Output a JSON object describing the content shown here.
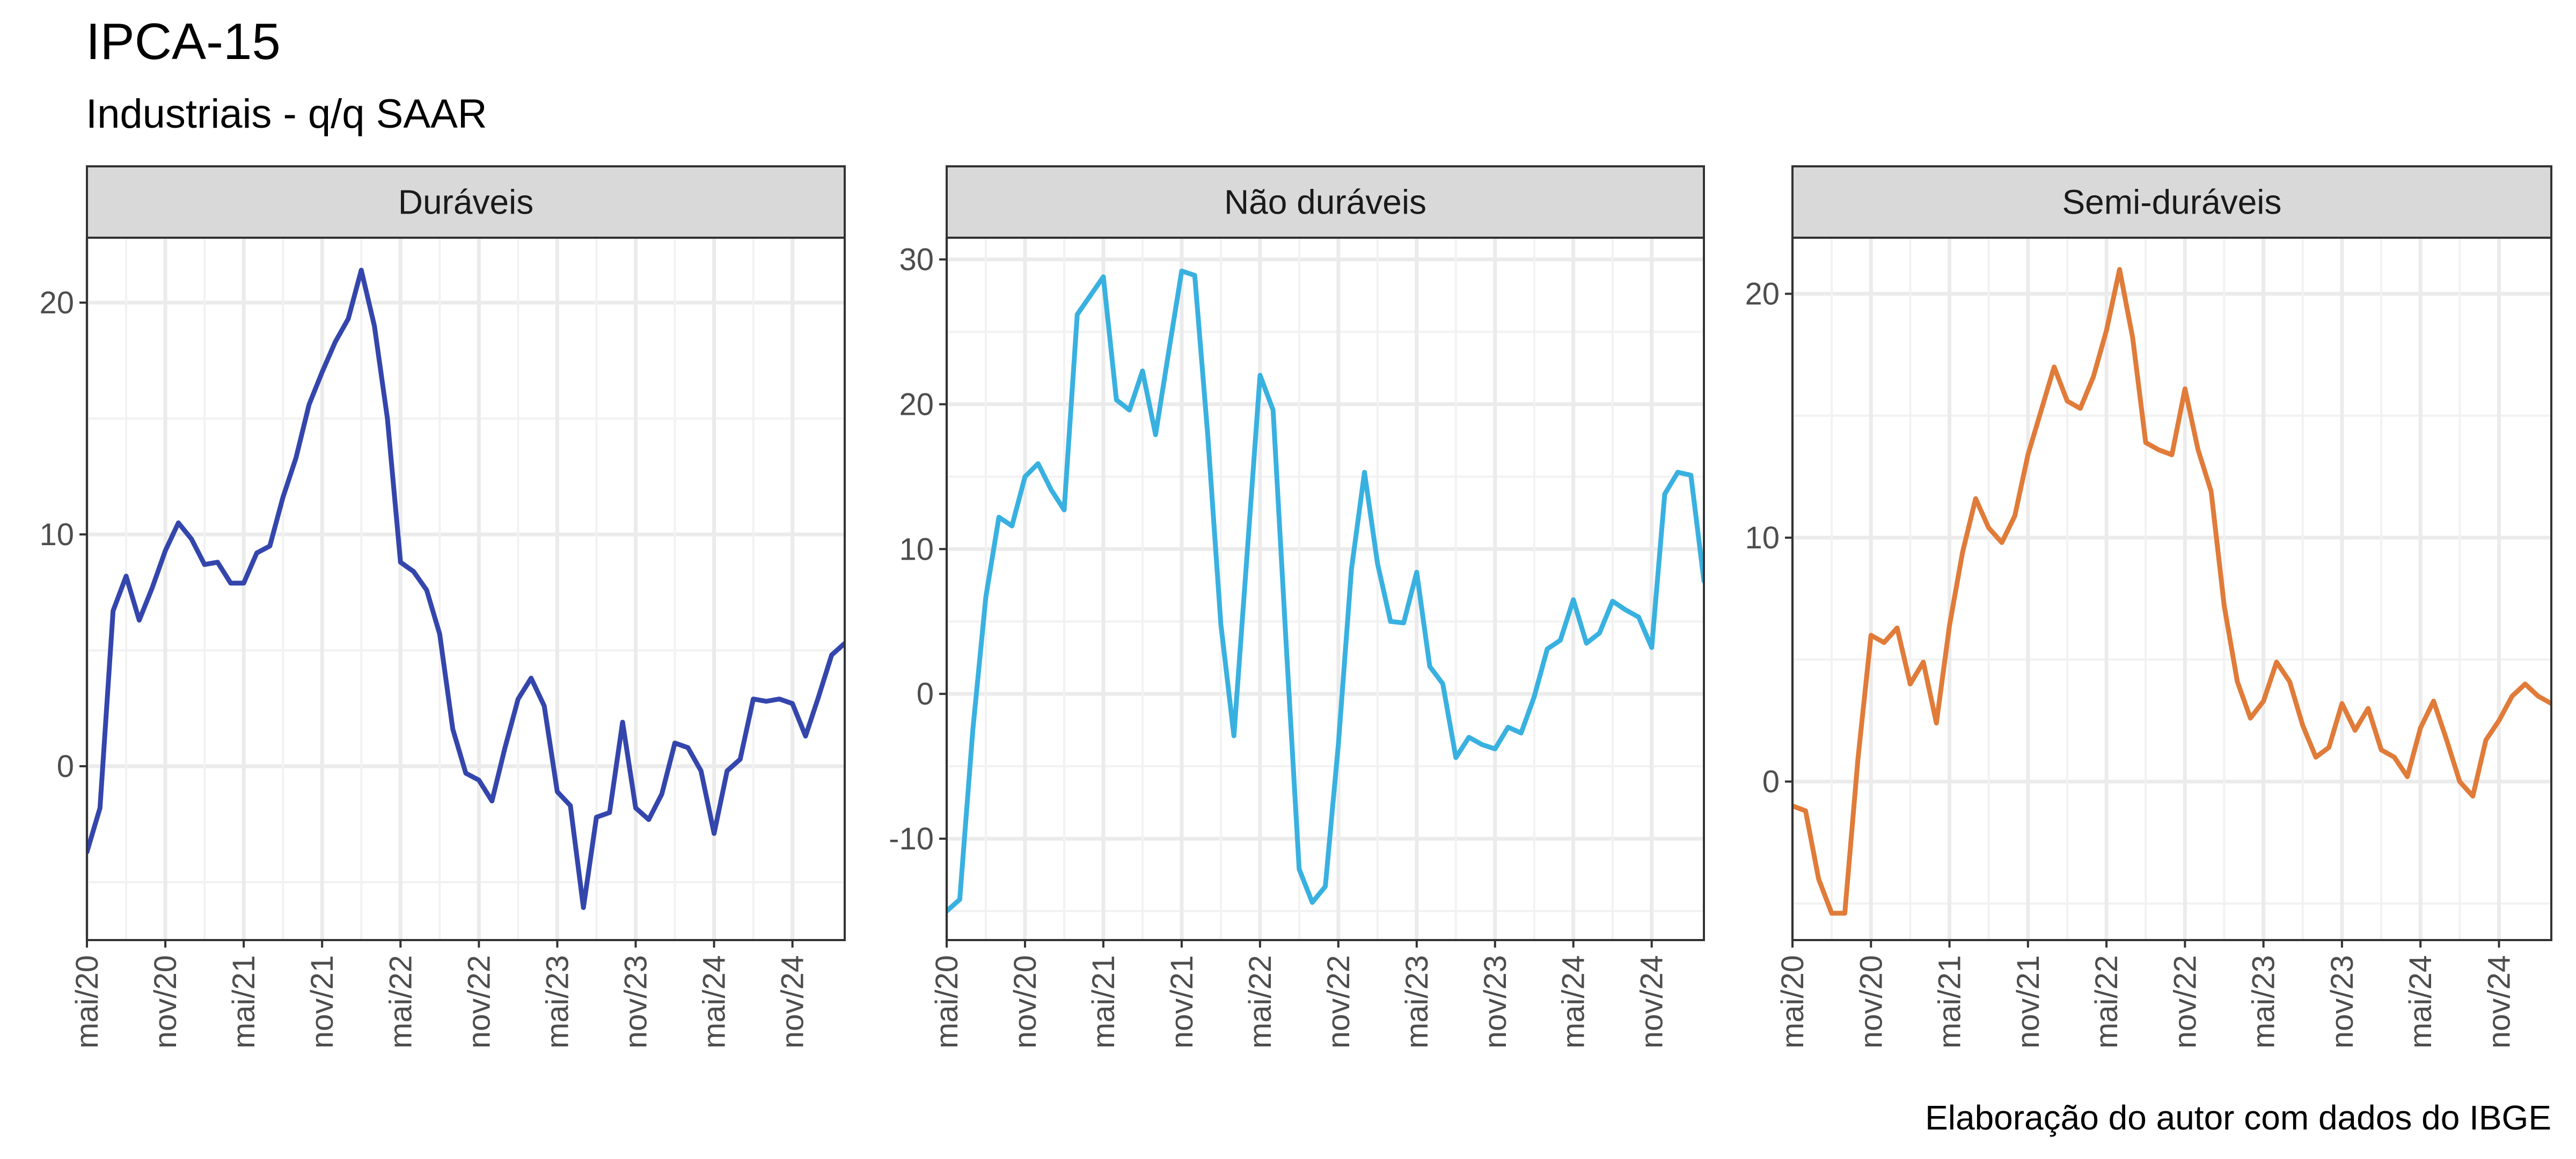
{
  "title": "IPCA-15",
  "subtitle": "Industriais - q/q SAAR",
  "caption": "Elaboração do autor com dados do IBGE",
  "chart_data": [
    {
      "type": "line",
      "panel": "Duráveis",
      "color": "#3446ac",
      "ylim": [
        -7.5,
        22.8
      ],
      "yticks": [
        0,
        10,
        20
      ],
      "xticks": [
        "mai/20",
        "nov/20",
        "mai/21",
        "nov/21",
        "mai/22",
        "nov/22",
        "mai/23",
        "nov/23",
        "mai/24",
        "nov/24"
      ],
      "x_start": "mai/20",
      "values": [
        -3.7,
        -1.8,
        6.7,
        8.2,
        6.3,
        7.7,
        9.3,
        10.5,
        9.8,
        8.7,
        8.8,
        7.9,
        7.9,
        9.2,
        9.5,
        11.6,
        13.3,
        15.6,
        17.0,
        18.3,
        19.3,
        21.4,
        19.0,
        15.0,
        8.8,
        8.4,
        7.6,
        5.7,
        1.6,
        -0.3,
        -0.6,
        -1.5,
        0.8,
        2.9,
        3.8,
        2.6,
        -1.1,
        -1.7,
        -6.1,
        -2.2,
        -2.0,
        1.9,
        -1.8,
        -2.3,
        -1.2,
        1.0,
        0.8,
        -0.2,
        -2.9,
        -0.2,
        0.3,
        2.9,
        2.8,
        2.9,
        2.7,
        1.3,
        3.0,
        4.8,
        5.3
      ]
    },
    {
      "type": "line",
      "panel": "Não duráveis",
      "color": "#39b1e0",
      "ylim": [
        -17,
        31.5
      ],
      "yticks": [
        -10,
        0,
        10,
        20,
        30
      ],
      "xticks": [
        "mai/20",
        "nov/20",
        "mai/21",
        "nov/21",
        "mai/22",
        "nov/22",
        "mai/23",
        "nov/23",
        "mai/24",
        "nov/24"
      ],
      "x_start": "mai/20",
      "values": [
        -15.0,
        -14.2,
        -2.5,
        6.7,
        12.2,
        11.6,
        15.0,
        15.9,
        14.1,
        12.7,
        26.2,
        27.5,
        28.8,
        20.3,
        19.6,
        22.3,
        17.9,
        23.6,
        29.2,
        28.9,
        17.8,
        4.8,
        -2.9,
        9.5,
        22.0,
        19.6,
        3.5,
        -12.1,
        -14.4,
        -13.3,
        -3.5,
        8.6,
        15.3,
        9.0,
        5.0,
        4.9,
        8.4,
        1.9,
        0.7,
        -4.4,
        -3.0,
        -3.5,
        -3.8,
        -2.3,
        -2.7,
        -0.2,
        3.1,
        3.7,
        6.5,
        3.5,
        4.2,
        6.4,
        5.8,
        5.3,
        3.2,
        13.8,
        15.3,
        15.1,
        7.8
      ]
    },
    {
      "type": "line",
      "panel": "Semi-duráveis",
      "color": "#e07b39",
      "ylim": [
        -6.5,
        22.3
      ],
      "yticks": [
        0,
        10,
        20
      ],
      "xticks": [
        "mai/20",
        "nov/20",
        "mai/21",
        "nov/21",
        "mai/22",
        "nov/22",
        "mai/23",
        "nov/23",
        "mai/24",
        "nov/24"
      ],
      "x_start": "mai/20",
      "values": [
        -1.0,
        -1.2,
        -4.0,
        -5.4,
        -5.4,
        0.9,
        6.0,
        5.7,
        6.3,
        4.0,
        4.9,
        2.4,
        6.4,
        9.4,
        11.6,
        10.4,
        9.8,
        10.9,
        13.4,
        15.2,
        17.0,
        15.6,
        15.3,
        16.6,
        18.5,
        21.0,
        18.2,
        13.9,
        13.6,
        13.4,
        16.1,
        13.6,
        11.9,
        7.2,
        4.1,
        2.6,
        3.3,
        4.9,
        4.1,
        2.3,
        1.0,
        1.4,
        3.2,
        2.1,
        3.0,
        1.3,
        1.0,
        0.2,
        2.2,
        3.3,
        1.7,
        0.0,
        -0.6,
        1.7,
        2.5,
        3.5,
        4.0,
        3.5,
        3.2
      ]
    }
  ]
}
